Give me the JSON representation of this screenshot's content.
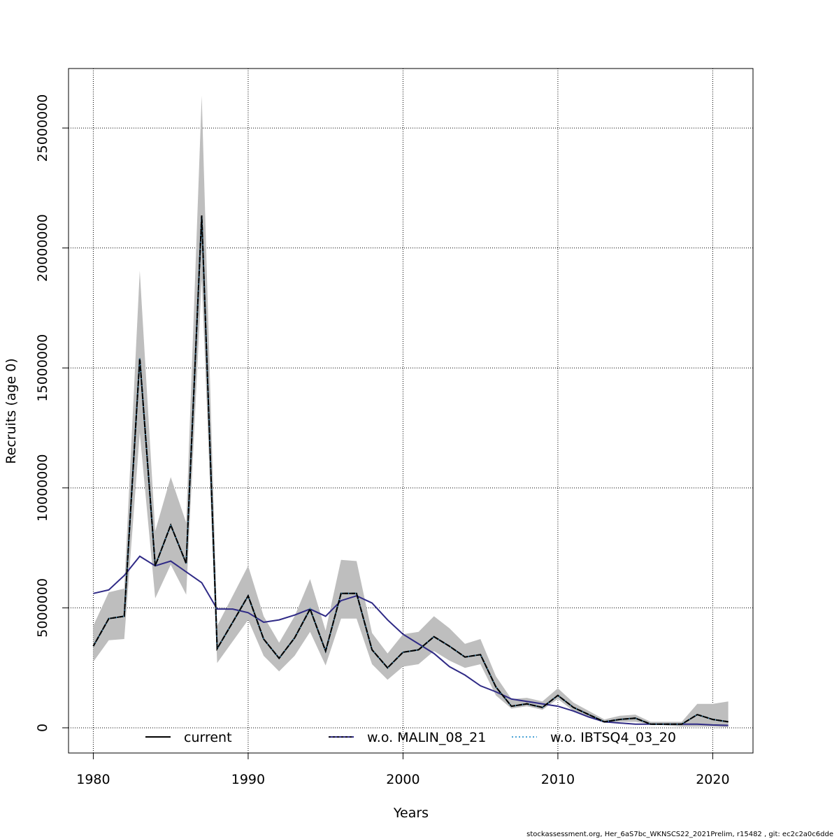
{
  "chart_data": {
    "type": "line",
    "xlabel": "Years",
    "ylabel": "Recruits (age 0)",
    "xlim": [
      1978.4,
      2022.6
    ],
    "ylim": [
      -1050000,
      27480000
    ],
    "x_ticks": [
      1980,
      1990,
      2000,
      2010,
      2020
    ],
    "y_ticks": [
      0,
      5000000,
      10000000,
      15000000,
      20000000,
      25000000
    ],
    "y_tick_labels": [
      "0",
      "5000000",
      "10000000",
      "15000000",
      "20000000",
      "25000000"
    ],
    "grid": true,
    "legend_position": "bottom",
    "x": [
      1980,
      1981,
      1982,
      1983,
      1984,
      1985,
      1986,
      1987,
      1988,
      1989,
      1990,
      1991,
      1992,
      1993,
      1994,
      1995,
      1996,
      1997,
      1998,
      1999,
      2000,
      2001,
      2002,
      2003,
      2004,
      2005,
      2006,
      2007,
      2008,
      2009,
      2010,
      2011,
      2012,
      2013,
      2014,
      2015,
      2016,
      2017,
      2018,
      2019,
      2020,
      2021
    ],
    "band": {
      "lower": [
        2750000,
        3650000,
        3700000,
        12300000,
        5400000,
        6800000,
        5550000,
        18700000,
        2700000,
        3600000,
        4500000,
        3000000,
        2350000,
        3000000,
        4000000,
        2600000,
        4550000,
        4550000,
        2650000,
        2000000,
        2550000,
        2650000,
        3200000,
        2800000,
        2500000,
        2650000,
        1350000,
        800000,
        900000,
        750000,
        1200000,
        700000,
        450000,
        200000,
        250000,
        250000,
        150000,
        100000,
        50000,
        50000,
        50000,
        20000
      ],
      "upper": [
        4250000,
        5650000,
        5800000,
        19050000,
        8200000,
        10450000,
        8550000,
        26350000,
        4250000,
        5500000,
        6750000,
        4650000,
        3550000,
        4650000,
        6200000,
        4050000,
        7000000,
        6950000,
        3950000,
        3100000,
        3900000,
        4000000,
        4650000,
        4150000,
        3500000,
        3700000,
        2150000,
        1200000,
        1250000,
        1100000,
        1650000,
        1050000,
        700000,
        350000,
        500000,
        550000,
        250000,
        250000,
        250000,
        1000000,
        1000000,
        1100000
      ]
    },
    "series": [
      {
        "name": "current",
        "color": "#000000",
        "dash": "solid",
        "values": [
          3400000,
          4550000,
          4650000,
          15400000,
          6750000,
          8450000,
          6850000,
          21350000,
          3300000,
          4400000,
          5500000,
          3700000,
          2900000,
          3750000,
          4950000,
          3200000,
          5600000,
          5600000,
          3250000,
          2500000,
          3150000,
          3250000,
          3800000,
          3400000,
          2950000,
          3050000,
          1700000,
          900000,
          1000000,
          850000,
          1350000,
          850000,
          550000,
          250000,
          350000,
          400000,
          150000,
          150000,
          150000,
          550000,
          350000,
          250000
        ]
      },
      {
        "name": "w.o. MALIN_08_21",
        "color": "#2f2a86",
        "dash": "solid",
        "values": [
          5600000,
          5750000,
          6350000,
          7150000,
          6750000,
          6950000,
          6500000,
          6050000,
          4950000,
          4950000,
          4800000,
          4400000,
          4500000,
          4700000,
          4950000,
          4650000,
          5300000,
          5500000,
          5200000,
          4500000,
          3900000,
          3500000,
          3100000,
          2550000,
          2200000,
          1750000,
          1500000,
          1200000,
          1100000,
          1000000,
          900000,
          700000,
          450000,
          250000,
          200000,
          150000,
          150000,
          150000,
          150000,
          150000,
          120000,
          100000
        ]
      },
      {
        "name": "w.o. IBTSQ4_03_20",
        "color": "#4ba3d6",
        "dash": "dotted",
        "values": [
          3400000,
          4550000,
          4650000,
          15400000,
          6750000,
          8450000,
          6850000,
          21350000,
          3300000,
          4400000,
          5500000,
          3700000,
          2900000,
          3750000,
          4950000,
          3200000,
          5600000,
          5600000,
          3250000,
          2500000,
          3150000,
          3250000,
          3800000,
          3400000,
          2950000,
          3050000,
          1700000,
          900000,
          1000000,
          850000,
          1350000,
          850000,
          550000,
          250000,
          350000,
          400000,
          150000,
          150000,
          150000,
          550000,
          350000,
          250000
        ]
      }
    ],
    "colors": {
      "band": "#bebebe",
      "grid": "#000000"
    }
  },
  "footer": "stockassessment.org, Her_6aS7bc_WKNSCS22_2021Prelim, r15482 , git: ec2c2a0c6dde"
}
